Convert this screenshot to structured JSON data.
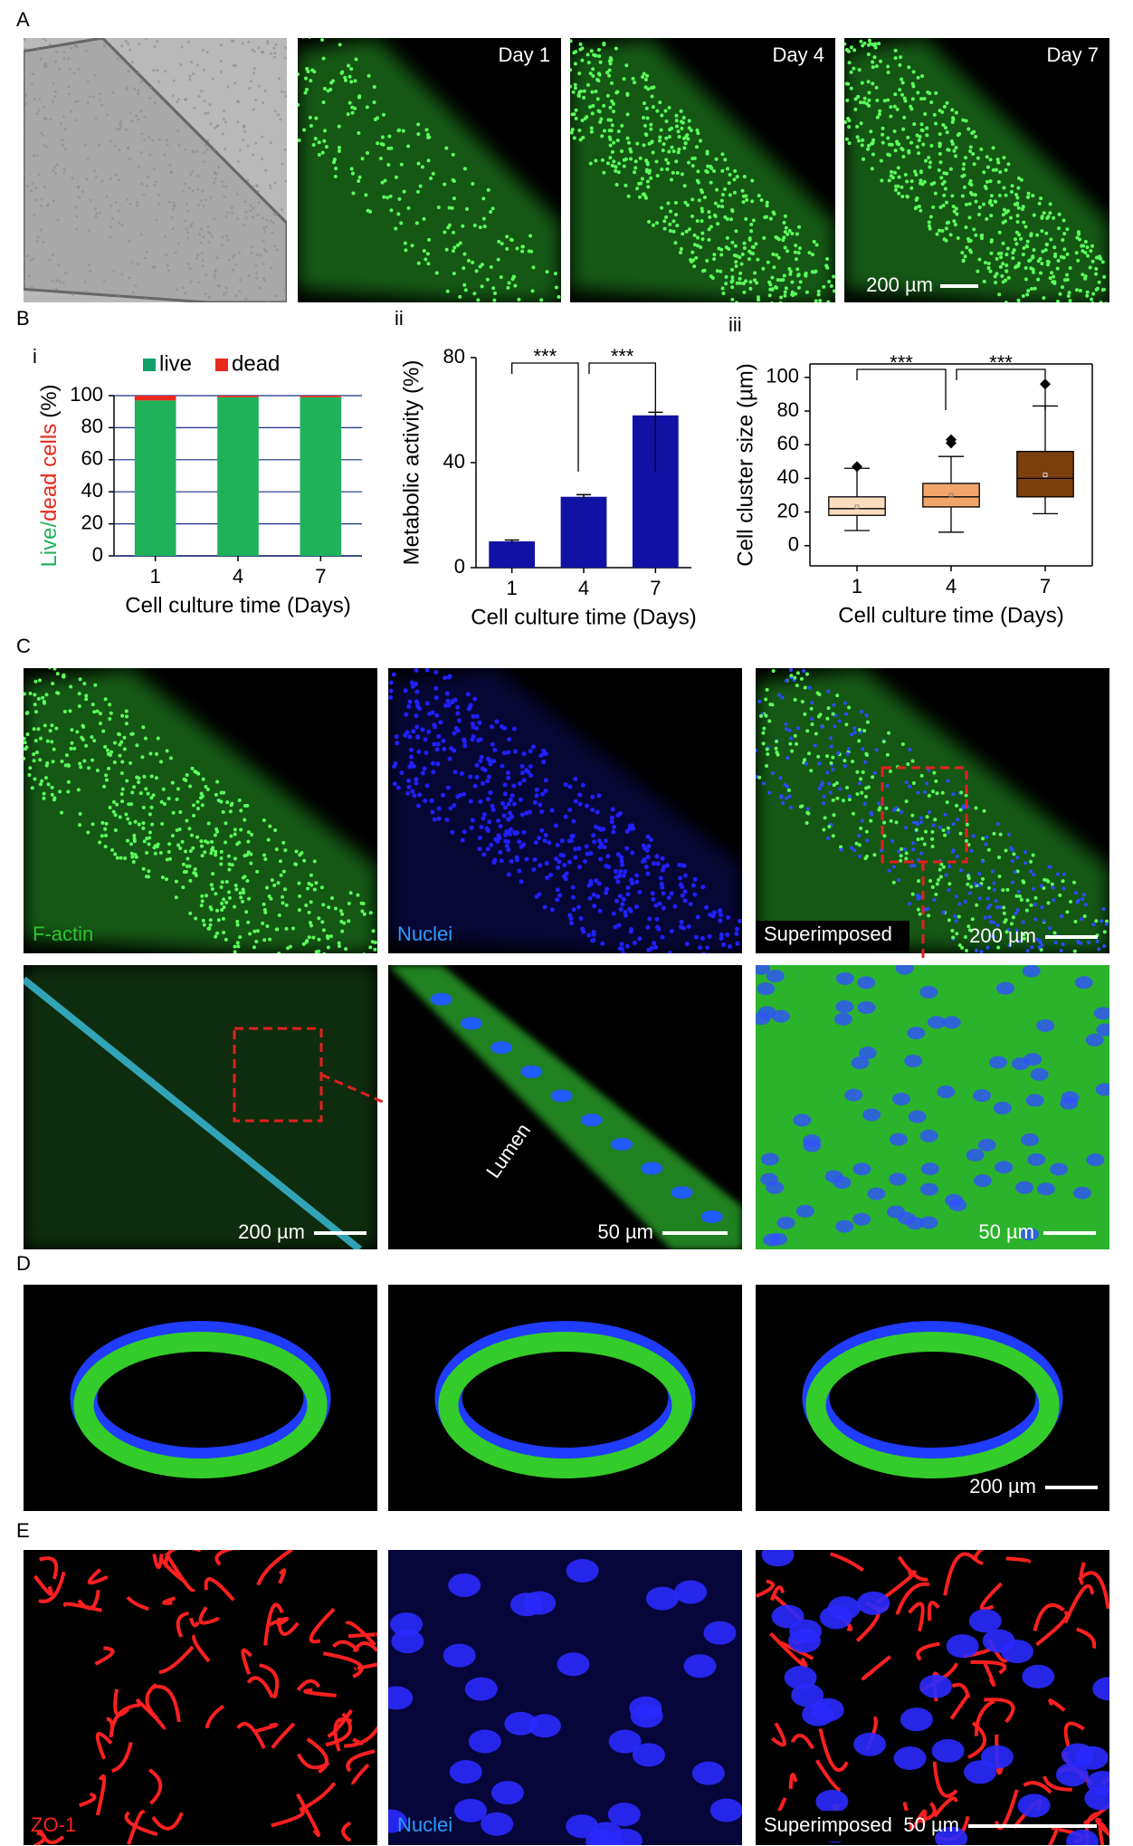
{
  "panel_labels": [
    "A",
    "B",
    "C",
    "D",
    "E"
  ],
  "panel_a": {
    "image_labels": [
      "Day 1",
      "Day 4",
      "Day 7"
    ],
    "scale_bar": "200 µm"
  },
  "chart_data": [
    {
      "type": "stacked_bar",
      "label": "i",
      "categories": [
        "1",
        "4",
        "7"
      ],
      "series": [
        {
          "name": "live",
          "color": "#1fb25a",
          "values": [
            97,
            99,
            99
          ]
        },
        {
          "name": "dead",
          "color": "#e8291c",
          "values": [
            3,
            1,
            1
          ]
        }
      ],
      "ylim": [
        0,
        100
      ],
      "yticks": [
        0,
        20,
        40,
        60,
        80,
        100
      ],
      "grid": true,
      "y_label_parts": [
        {
          "text": "Live/",
          "color": "#1fb25a"
        },
        {
          "text": "dead cells",
          "color": "#e8291c"
        },
        {
          "text": "(%)",
          "color": "#000000"
        }
      ],
      "x_label": "Cell culture time (Days)"
    },
    {
      "type": "bar",
      "label": "ii",
      "categories": [
        "1",
        "4",
        "7"
      ],
      "values": [
        10,
        27,
        58
      ],
      "errors": [
        0.5,
        0.8,
        1.2
      ],
      "color": "#1111a3",
      "ylim": [
        0,
        80
      ],
      "yticks": [
        0,
        40,
        80
      ],
      "y_label": "Metabolic activity (%)",
      "x_label": "Cell culture time (Days)",
      "significance": [
        {
          "pair": [
            0,
            1
          ],
          "label": "***"
        },
        {
          "pair": [
            1,
            2
          ],
          "label": "***"
        }
      ]
    },
    {
      "type": "box",
      "label": "iii",
      "categories": [
        "1",
        "4",
        "7"
      ],
      "boxes": [
        {
          "whisker_low": 9,
          "q1": 18,
          "median": 22,
          "q3": 29,
          "whisker_high": 46,
          "mean": 23,
          "outliers": [
            47
          ]
        },
        {
          "whisker_low": 8,
          "q1": 23,
          "median": 29,
          "q3": 37,
          "whisker_high": 53,
          "mean": 30,
          "outliers": [
            61,
            63
          ]
        },
        {
          "whisker_low": 19,
          "q1": 29,
          "median": 40,
          "q3": 56,
          "whisker_high": 83,
          "mean": 42,
          "outliers": [
            96
          ]
        }
      ],
      "colors": [
        "#fcdcbd",
        "#f2a56a",
        "#7b3f0e"
      ],
      "ylim": [
        -12,
        108
      ],
      "yticks": [
        0,
        20,
        40,
        60,
        80,
        100
      ],
      "y_label": "Cell cluster size (µm)",
      "x_label": "Cell culture time (Days)",
      "significance": [
        {
          "pair": [
            0,
            1
          ],
          "label": "***"
        },
        {
          "pair": [
            1,
            2
          ],
          "label": "***"
        }
      ]
    }
  ],
  "panel_c": {
    "row1_labels": [
      "F-actin",
      "Nuclei",
      "Superimposed"
    ],
    "row1_scale_bar": "200 µm",
    "lumen_label": "Lumen",
    "row2_scale_bars": [
      "200 µm",
      "50 µm",
      "50 µm"
    ]
  },
  "panel_d": {
    "scale_bar": "200 µm"
  },
  "panel_e": {
    "labels": [
      "ZO-1",
      "Nuclei",
      "Superimposed"
    ],
    "scale_bar": "50 µm"
  }
}
